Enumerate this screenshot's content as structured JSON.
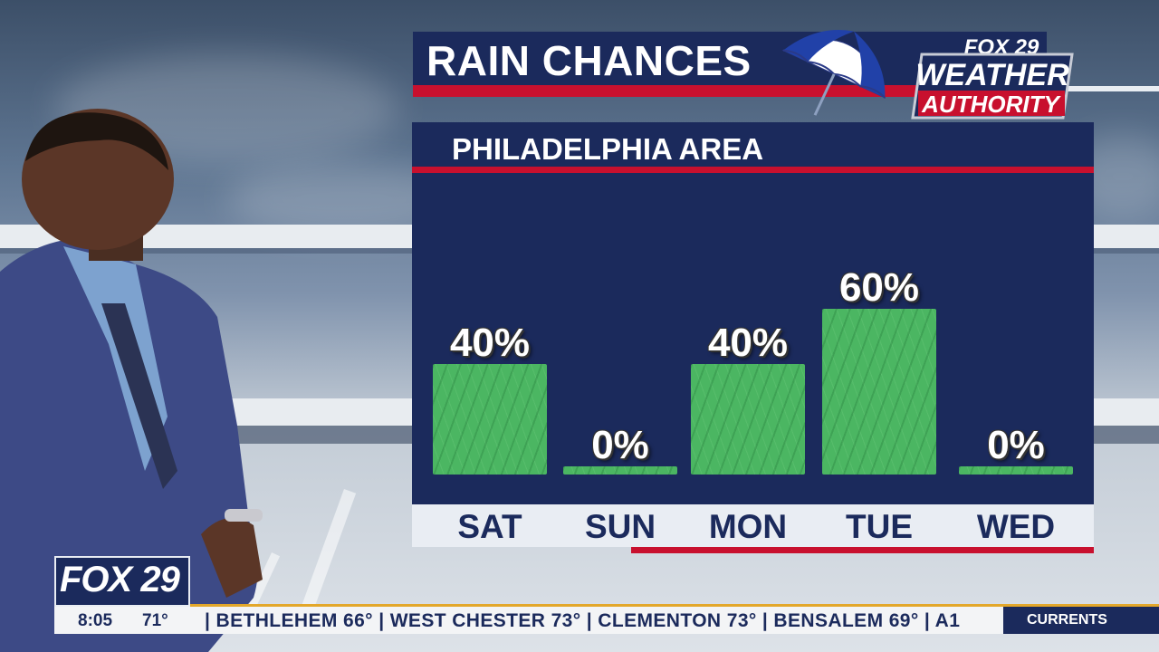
{
  "title": "RAIN CHANCES",
  "logo": {
    "line1": "FOX 29",
    "line2": "WEATHER",
    "line3": "AUTHORITY",
    "icon": "umbrella-icon"
  },
  "chart_data": {
    "type": "bar",
    "title": "RAIN CHANCES",
    "subtitle": "PHILADELPHIA AREA",
    "categories": [
      "SAT",
      "SUN",
      "MON",
      "TUE",
      "WED"
    ],
    "values": [
      40,
      0,
      40,
      60,
      0
    ],
    "value_labels": [
      "40%",
      "0%",
      "40%",
      "60%",
      "0%"
    ],
    "unit": "%",
    "ylim": [
      0,
      100
    ],
    "grid": false,
    "legend": "none",
    "bar_color": "#4bb662"
  },
  "colors": {
    "navy": "#1b2a5c",
    "red": "#c8102e",
    "green": "#4bb662",
    "gold": "#e3a72a"
  },
  "lower_third": {
    "brand": "FOX 29",
    "time": "8:05",
    "temp": "71°",
    "ticker": "| BETHLEHEM 66° | WEST CHESTER 73° | CLEMENTON 73° | BENSALEM 69° | A1",
    "currents_label": "CURRENTS"
  }
}
